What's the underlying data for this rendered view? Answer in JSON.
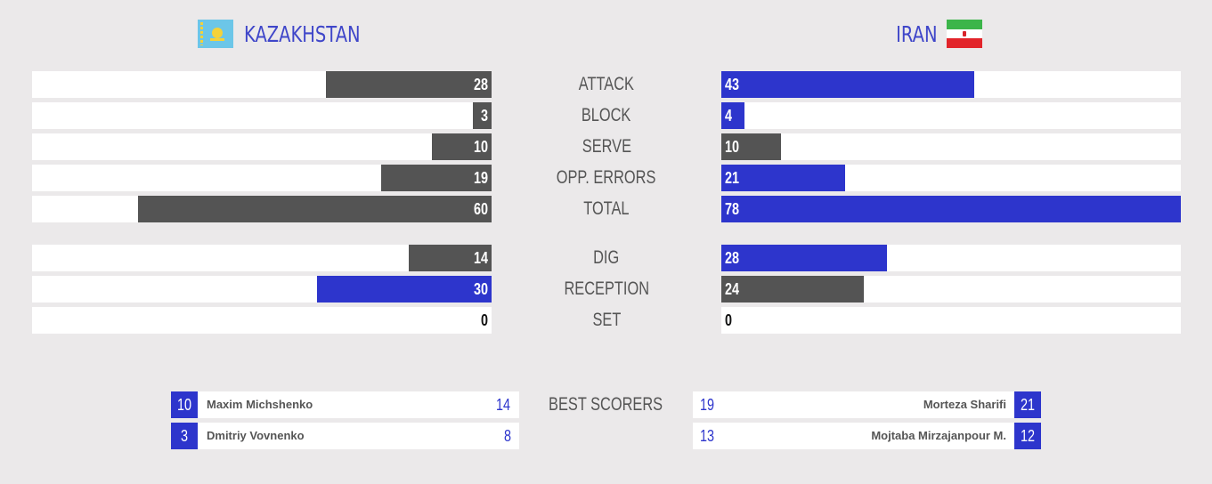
{
  "teams": {
    "left": {
      "name": "KAZAKHSTAN",
      "flag_icon": "kazakhstan-flag-icon"
    },
    "right": {
      "name": "IRAN",
      "flag_icon": "iran-flag-icon"
    }
  },
  "colors": {
    "dark_bar": "#545454",
    "accent_blue": "#2d35cc",
    "background": "#ebe9ea"
  },
  "stats": [
    {
      "key": "attack",
      "label": "ATTACK",
      "left": "28",
      "right": "43",
      "left_fraction": 0.36,
      "right_fraction": 0.55,
      "left_color": "dark",
      "right_color": "blue"
    },
    {
      "key": "block",
      "label": "BLOCK",
      "left": "3",
      "right": "4",
      "left_fraction": 0.04,
      "right_fraction": 0.05,
      "left_color": "dark",
      "right_color": "blue"
    },
    {
      "key": "serve",
      "label": "SERVE",
      "left": "10",
      "right": "10",
      "left_fraction": 0.13,
      "right_fraction": 0.13,
      "left_color": "dark",
      "right_color": "dark"
    },
    {
      "key": "opp-errors",
      "label": "OPP. ERRORS",
      "left": "19",
      "right": "21",
      "left_fraction": 0.24,
      "right_fraction": 0.27,
      "left_color": "dark",
      "right_color": "blue"
    },
    {
      "key": "total",
      "label": "TOTAL",
      "left": "60",
      "right": "78",
      "left_fraction": 0.77,
      "right_fraction": 1.0,
      "left_color": "dark",
      "right_color": "blue"
    },
    {
      "key": "dig",
      "label": "DIG",
      "left": "14",
      "right": "28",
      "left_fraction": 0.18,
      "right_fraction": 0.36,
      "left_color": "dark",
      "right_color": "blue"
    },
    {
      "key": "reception",
      "label": "RECEPTION",
      "left": "30",
      "right": "24",
      "left_fraction": 0.38,
      "right_fraction": 0.31,
      "left_color": "blue",
      "right_color": "dark"
    },
    {
      "key": "set",
      "label": "SET",
      "left": "0",
      "right": "0",
      "left_fraction": 0,
      "right_fraction": 0,
      "left_color": "dark",
      "right_color": "dark"
    }
  ],
  "best_scorers": {
    "label": "BEST SCORERS",
    "left": [
      {
        "number": "10",
        "name": "Maxim Michshenko",
        "points": "14"
      },
      {
        "number": "3",
        "name": "Dmitriy Vovnenko",
        "points": "8"
      }
    ],
    "right": [
      {
        "number": "21",
        "name": "Morteza Sharifi",
        "points": "19"
      },
      {
        "number": "12",
        "name": "Mojtaba Mirzajanpour M.",
        "points": "13"
      }
    ]
  }
}
